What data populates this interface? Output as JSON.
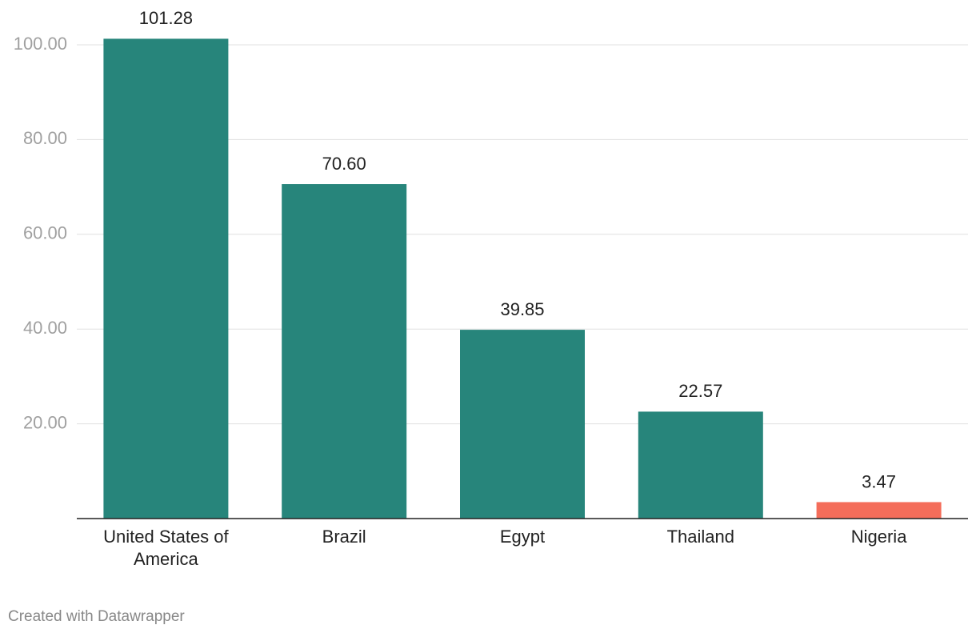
{
  "chart_data": {
    "type": "bar",
    "categories": [
      "United States of America",
      "Brazil",
      "Egypt",
      "Thailand",
      "Nigeria"
    ],
    "values": [
      101.28,
      70.6,
      39.85,
      22.57,
      3.47
    ],
    "value_labels": [
      "101.28",
      "70.60",
      "39.85",
      "22.57",
      "3.47"
    ],
    "colors": [
      "#27857b",
      "#27857b",
      "#27857b",
      "#27857b",
      "#f46d5a"
    ],
    "ylim": [
      0,
      105
    ],
    "yticks": [
      {
        "value": 20,
        "label": "20.00"
      },
      {
        "value": 40,
        "label": "40.00"
      },
      {
        "value": 60,
        "label": "60.00"
      },
      {
        "value": 80,
        "label": "80.00"
      },
      {
        "value": 100,
        "label": "100.00"
      }
    ],
    "grid": true,
    "credit": "Created with Datawrapper"
  }
}
